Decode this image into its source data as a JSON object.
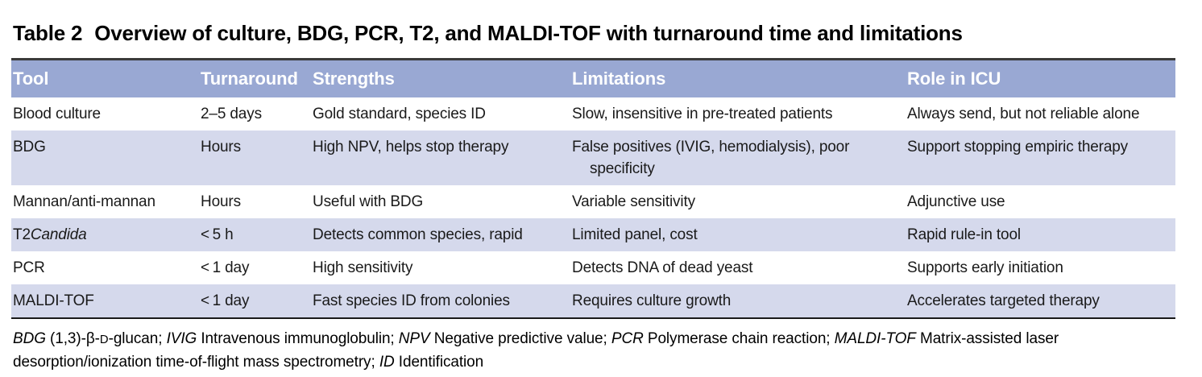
{
  "colors": {
    "header_bg": "#99a8d3",
    "header_text": "#ffffff",
    "row_shaded_bg": "#d5d9ec",
    "row_plain_bg": "#ffffff",
    "body_text": "#1a1a1a",
    "top_rule": "#3a3a3a",
    "bottom_rule": "#1a1a1a"
  },
  "title": {
    "label": "Table 2",
    "text": "Overview of culture, BDG, PCR, T2, and MALDI-TOF with turnaround time and limitations"
  },
  "table": {
    "columns": [
      {
        "key": "tool",
        "label": "Tool"
      },
      {
        "key": "turnaround",
        "label": "Turnaround"
      },
      {
        "key": "strengths",
        "label": "Strengths"
      },
      {
        "key": "limitations",
        "label": "Limitations"
      },
      {
        "key": "role_in_icu",
        "label": "Role in ICU"
      }
    ],
    "rows": [
      {
        "shaded": false,
        "cells": [
          [
            {
              "t": "Blood culture"
            }
          ],
          [
            {
              "t": "2–5 days"
            }
          ],
          [
            {
              "t": "Gold standard, species ID"
            }
          ],
          [
            {
              "t": "Slow, insensitive in pre-treated patients"
            }
          ],
          [
            {
              "t": "Always send, but not reliable alone"
            }
          ]
        ]
      },
      {
        "shaded": true,
        "cells": [
          [
            {
              "t": "BDG"
            }
          ],
          [
            {
              "t": "Hours"
            }
          ],
          [
            {
              "t": "High NPV, helps stop therapy"
            }
          ],
          [
            {
              "t": "False positives (IVIG, hemodialysis), poor specificity"
            }
          ],
          [
            {
              "t": "Support stopping empiric therapy"
            }
          ]
        ]
      },
      {
        "shaded": false,
        "cells": [
          [
            {
              "t": "Mannan/anti-mannan"
            }
          ],
          [
            {
              "t": "Hours"
            }
          ],
          [
            {
              "t": "Useful with BDG"
            }
          ],
          [
            {
              "t": "Variable sensitivity"
            }
          ],
          [
            {
              "t": "Adjunctive use"
            }
          ]
        ]
      },
      {
        "shaded": true,
        "cells": [
          [
            {
              "t": "T2"
            },
            {
              "t": "Candida",
              "italic": true
            }
          ],
          [
            {
              "t": "< 5 h"
            }
          ],
          [
            {
              "t": "Detects common species, rapid"
            }
          ],
          [
            {
              "t": "Limited panel, cost"
            }
          ],
          [
            {
              "t": "Rapid rule-in tool"
            }
          ]
        ]
      },
      {
        "shaded": false,
        "cells": [
          [
            {
              "t": "PCR"
            }
          ],
          [
            {
              "t": "< 1 day"
            }
          ],
          [
            {
              "t": "High sensitivity"
            }
          ],
          [
            {
              "t": "Detects DNA of dead yeast"
            }
          ],
          [
            {
              "t": "Supports early initiation"
            }
          ]
        ]
      },
      {
        "shaded": true,
        "cells": [
          [
            {
              "t": "MALDI-TOF"
            }
          ],
          [
            {
              "t": "< 1 day"
            }
          ],
          [
            {
              "t": "Fast species ID from colonies"
            }
          ],
          [
            {
              "t": "Requires culture growth"
            }
          ],
          [
            {
              "t": "Accelerates targeted therapy"
            }
          ]
        ]
      }
    ]
  },
  "footnote": {
    "segments": [
      {
        "t": "BDG",
        "italic": true
      },
      {
        "t": " (1,3)-β-"
      },
      {
        "t": "D",
        "sc": true
      },
      {
        "t": "-glucan; "
      },
      {
        "t": "IVIG",
        "italic": true
      },
      {
        "t": " Intravenous immunoglobulin; "
      },
      {
        "t": "NPV",
        "italic": true
      },
      {
        "t": " Negative predictive value; "
      },
      {
        "t": "PCR",
        "italic": true
      },
      {
        "t": " Polymerase chain reaction; "
      },
      {
        "t": "MALDI-TOF",
        "italic": true
      },
      {
        "t": " Matrix-assisted laser desorption/ionization time-of-flight mass spectrometry; "
      },
      {
        "t": "ID",
        "italic": true
      },
      {
        "t": " Identification"
      }
    ]
  }
}
